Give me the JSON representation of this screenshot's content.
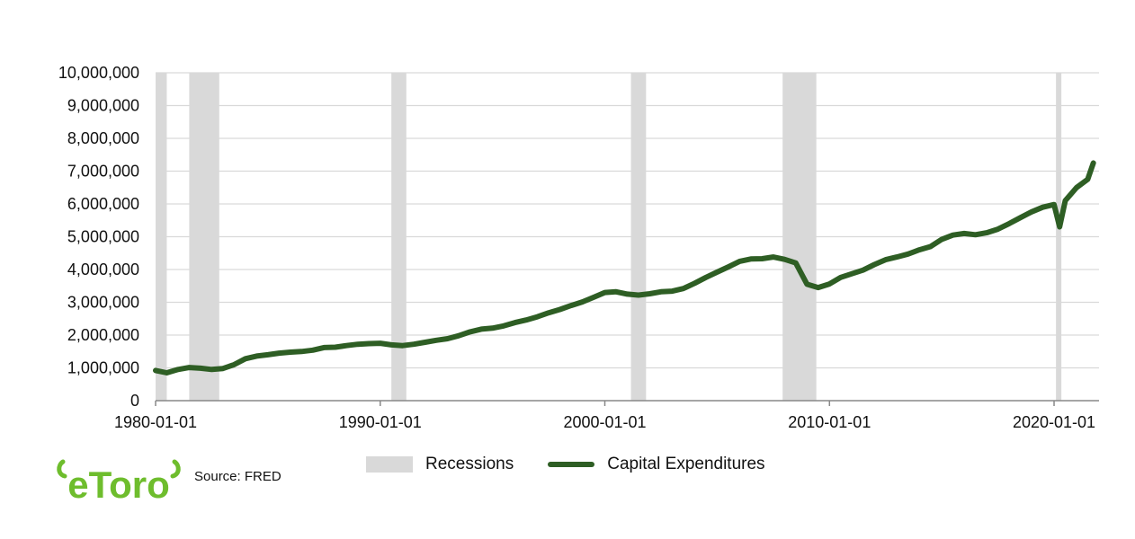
{
  "chart_data": {
    "type": "line",
    "title": "",
    "xlabel": "",
    "ylabel": "",
    "ylim": [
      0,
      10000000
    ],
    "xlim": [
      "1980-01-01",
      "2022-01-01"
    ],
    "y_ticks": [
      "0",
      "1,000,000",
      "2,000,000",
      "3,000,000",
      "4,000,000",
      "5,000,000",
      "6,000,000",
      "7,000,000",
      "8,000,000",
      "9,000,000",
      "10,000,000"
    ],
    "y_tick_values": [
      0,
      1000000,
      2000000,
      3000000,
      4000000,
      5000000,
      6000000,
      7000000,
      8000000,
      9000000,
      10000000
    ],
    "x_ticks": [
      "1980-01-01",
      "1990-01-01",
      "2000-01-01",
      "2010-01-01",
      "2020-01-01"
    ],
    "grid": "horizontal",
    "legend_placement": "bottom-center",
    "series": [
      {
        "name": "Capital Expenditures",
        "color": "#2e5e24",
        "x": [
          "1980-01-01",
          "1980-07-01",
          "1981-01-01",
          "1981-07-01",
          "1982-01-01",
          "1982-07-01",
          "1983-01-01",
          "1983-07-01",
          "1984-01-01",
          "1984-07-01",
          "1985-01-01",
          "1985-07-01",
          "1986-01-01",
          "1986-07-01",
          "1987-01-01",
          "1987-07-01",
          "1988-01-01",
          "1988-07-01",
          "1989-01-01",
          "1989-07-01",
          "1990-01-01",
          "1990-07-01",
          "1991-01-01",
          "1991-07-01",
          "1992-01-01",
          "1992-07-01",
          "1993-01-01",
          "1993-07-01",
          "1994-01-01",
          "1994-07-01",
          "1995-01-01",
          "1995-07-01",
          "1996-01-01",
          "1996-07-01",
          "1997-01-01",
          "1997-07-01",
          "1998-01-01",
          "1998-07-01",
          "1999-01-01",
          "1999-07-01",
          "2000-01-01",
          "2000-07-01",
          "2001-01-01",
          "2001-07-01",
          "2002-01-01",
          "2002-07-01",
          "2003-01-01",
          "2003-07-01",
          "2004-01-01",
          "2004-07-01",
          "2005-01-01",
          "2005-07-01",
          "2006-01-01",
          "2006-07-01",
          "2007-01-01",
          "2007-07-01",
          "2008-01-01",
          "2008-07-01",
          "2009-01-01",
          "2009-07-01",
          "2010-01-01",
          "2010-07-01",
          "2011-01-01",
          "2011-07-01",
          "2012-01-01",
          "2012-07-01",
          "2013-01-01",
          "2013-07-01",
          "2014-01-01",
          "2014-07-01",
          "2015-01-01",
          "2015-07-01",
          "2016-01-01",
          "2016-07-01",
          "2017-01-01",
          "2017-07-01",
          "2018-01-01",
          "2018-07-01",
          "2019-01-01",
          "2019-07-01",
          "2020-01-01",
          "2020-04-01",
          "2020-07-01",
          "2021-01-01",
          "2021-07-01",
          "2021-10-01"
        ],
        "values": [
          920000,
          850000,
          950000,
          1010000,
          990000,
          950000,
          980000,
          1100000,
          1280000,
          1360000,
          1400000,
          1450000,
          1480000,
          1500000,
          1540000,
          1620000,
          1630000,
          1680000,
          1720000,
          1740000,
          1750000,
          1700000,
          1680000,
          1720000,
          1780000,
          1840000,
          1890000,
          1980000,
          2100000,
          2180000,
          2210000,
          2280000,
          2380000,
          2460000,
          2560000,
          2680000,
          2780000,
          2900000,
          3010000,
          3150000,
          3300000,
          3320000,
          3250000,
          3220000,
          3260000,
          3320000,
          3340000,
          3420000,
          3580000,
          3760000,
          3920000,
          4080000,
          4250000,
          4320000,
          4330000,
          4380000,
          4310000,
          4200000,
          3550000,
          3450000,
          3560000,
          3760000,
          3870000,
          3980000,
          4150000,
          4300000,
          4380000,
          4470000,
          4600000,
          4700000,
          4920000,
          5050000,
          5100000,
          5060000,
          5120000,
          5230000,
          5400000,
          5580000,
          5760000,
          5900000,
          5980000,
          5300000,
          6100000,
          6500000,
          6750000,
          7250000
        ]
      }
    ],
    "recessions": [
      {
        "start": "1980-01-01",
        "end": "1980-07-01"
      },
      {
        "start": "1981-07-01",
        "end": "1982-11-01"
      },
      {
        "start": "1990-07-01",
        "end": "1991-03-01"
      },
      {
        "start": "2001-03-01",
        "end": "2001-11-01"
      },
      {
        "start": "2007-12-01",
        "end": "2009-06-01"
      },
      {
        "start": "2020-02-01",
        "end": "2020-04-01"
      }
    ],
    "recession_color": "#d9d9d9",
    "legend": {
      "recessions_label": "Recessions",
      "series_label": "Capital Expenditures"
    }
  },
  "footer": {
    "logo_text": "eToro",
    "logo_color": "#6ebd2d",
    "source": "Source: FRED"
  }
}
